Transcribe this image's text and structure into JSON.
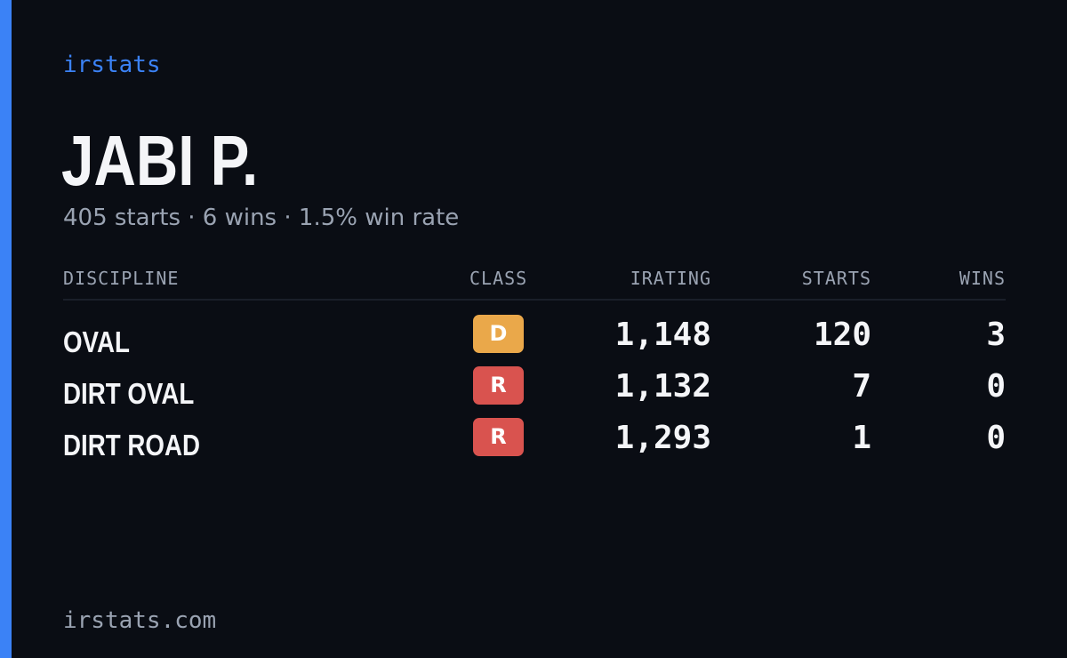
{
  "brand": "irstats",
  "driver": {
    "name": "JABI P.",
    "summary": "405 starts · 6 wins · 1.5% win rate"
  },
  "table": {
    "headers": {
      "discipline": "DISCIPLINE",
      "class": "CLASS",
      "irating": "IRATING",
      "starts": "STARTS",
      "wins": "WINS"
    },
    "rows": [
      {
        "discipline": "OVAL",
        "class": "D",
        "class_color": "#eaa84a",
        "irating": "1,148",
        "starts": "120",
        "wins": "3"
      },
      {
        "discipline": "DIRT OVAL",
        "class": "R",
        "class_color": "#d9534f",
        "irating": "1,132",
        "starts": "7",
        "wins": "0"
      },
      {
        "discipline": "DIRT ROAD",
        "class": "R",
        "class_color": "#d9534f",
        "irating": "1,293",
        "starts": "1",
        "wins": "0"
      }
    ]
  },
  "footer": "irstats.com",
  "colors": {
    "background": "#0a0d14",
    "accent": "#3b82f6",
    "text_primary": "#f4f5f8",
    "text_muted": "#9aa3b2"
  }
}
